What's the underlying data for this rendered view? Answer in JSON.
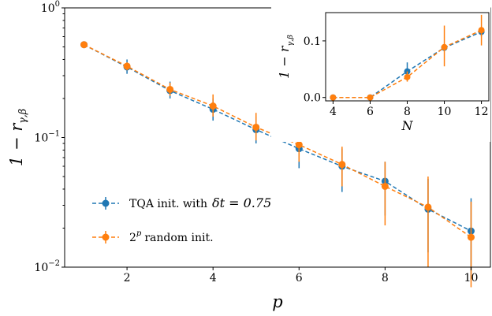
{
  "chart_data": [
    {
      "type": "line",
      "scale_y": "log",
      "xlabel": "p",
      "ylabel": "1 − r",
      "ylabel_sub": "γ,β",
      "xlim": [
        0.55,
        10.45
      ],
      "ylim": [
        0.01,
        1
      ],
      "xticks": [
        2,
        4,
        6,
        8,
        10
      ],
      "xtick_labels": [
        "2",
        "4",
        "6",
        "8",
        "10"
      ],
      "yticks": [
        0.01,
        0.1,
        1
      ],
      "ytick_labels": [
        [
          "10",
          "−2"
        ],
        [
          "10",
          "−1"
        ],
        [
          "10",
          "0"
        ]
      ],
      "grid": false,
      "legend_position": "lower-left",
      "x": [
        1,
        2,
        3,
        4,
        5,
        6,
        7,
        8,
        9,
        10
      ],
      "series": [
        {
          "name": "TQA init. with",
          "name_math": "δt = 0.75",
          "color": "#1f77b4",
          "values": [
            0.52,
            0.35,
            0.23,
            0.165,
            0.115,
            0.082,
            0.06,
            0.046,
            0.028,
            0.019
          ],
          "err_low": [
            0.52,
            0.31,
            0.2,
            0.135,
            0.09,
            0.058,
            0.038,
            0.025,
            0.013,
            0.008
          ],
          "err_high": [
            0.52,
            0.4,
            0.27,
            0.2,
            0.145,
            0.105,
            0.082,
            0.065,
            0.048,
            0.034
          ]
        },
        {
          "name": "random init.",
          "name_prefix": [
            "2",
            "p"
          ],
          "color": "#ff7f0e",
          "values": [
            0.52,
            0.355,
            0.235,
            0.175,
            0.12,
            0.088,
            0.062,
            0.042,
            0.029,
            0.017
          ],
          "err_low": [
            0.52,
            0.33,
            0.21,
            0.145,
            0.095,
            0.065,
            0.042,
            0.021,
            0.01,
            0.007
          ],
          "err_high": [
            0.52,
            0.38,
            0.265,
            0.215,
            0.155,
            0.115,
            0.085,
            0.065,
            0.05,
            0.032
          ]
        }
      ]
    },
    {
      "type": "line",
      "xlabel": "N",
      "ylabel": "1 − r",
      "ylabel_sub": "γ,β",
      "xlim": [
        3.6,
        12.4
      ],
      "ylim": [
        -0.006,
        0.15
      ],
      "xticks": [
        4,
        6,
        8,
        10,
        12
      ],
      "xtick_labels": [
        "4",
        "6",
        "8",
        "10",
        "12"
      ],
      "yticks": [
        0,
        0.1
      ],
      "ytick_labels": [
        "0.0",
        "0.1"
      ],
      "grid": false,
      "x": [
        4,
        6,
        8,
        10,
        12
      ],
      "series": [
        {
          "color": "#1f77b4",
          "values": [
            0.0,
            0.0,
            0.046,
            0.088,
            0.116
          ],
          "err_low": [
            0.0,
            0.0,
            0.038,
            0.082,
            0.108
          ],
          "err_high": [
            0.0,
            0.0,
            0.062,
            0.094,
            0.124
          ]
        },
        {
          "color": "#ff7f0e",
          "values": [
            0.0,
            0.0,
            0.036,
            0.089,
            0.119
          ],
          "err_low": [
            0.0,
            0.0,
            0.028,
            0.055,
            0.092
          ],
          "err_high": [
            0.0,
            0.0,
            0.046,
            0.127,
            0.146
          ]
        }
      ]
    }
  ]
}
